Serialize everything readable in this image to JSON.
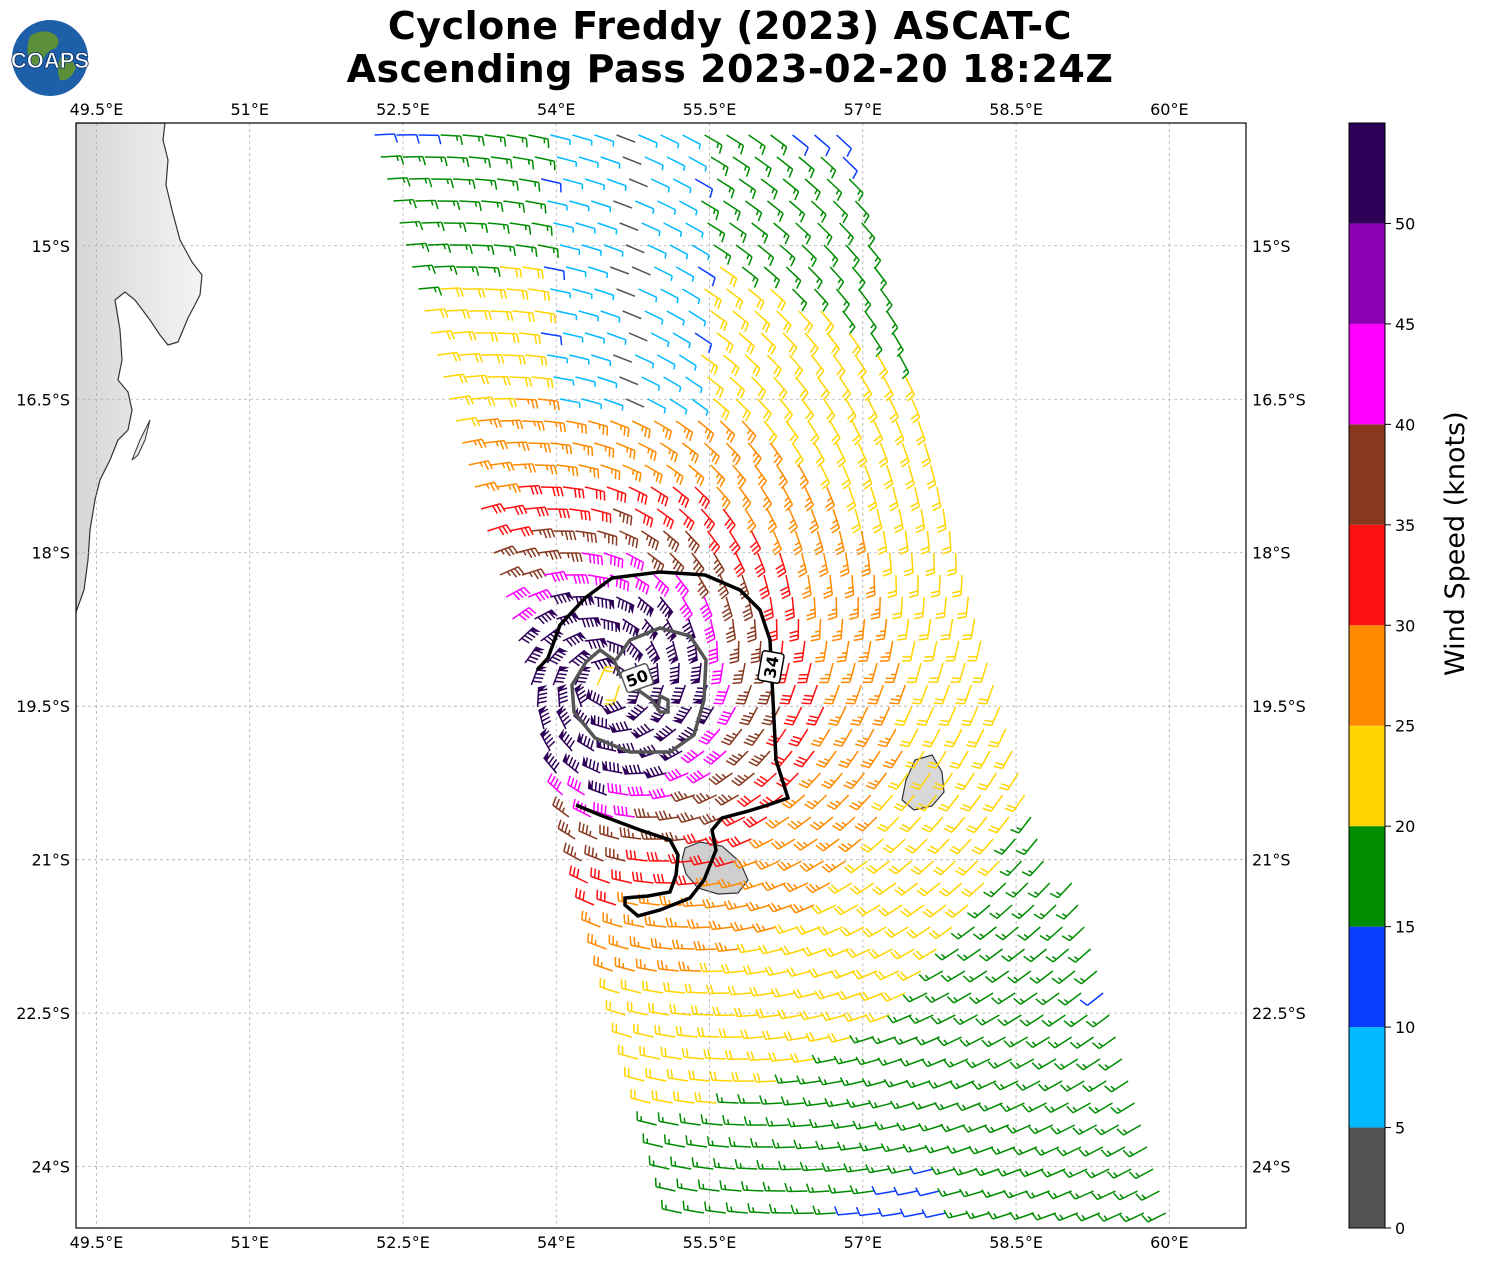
{
  "title": {
    "line1": "Cyclone Freddy (2023) ASCAT-C",
    "line2": "Ascending Pass 2023-02-20 18:24Z"
  },
  "logo": {
    "text": "COAPS",
    "icon": "globe-icon"
  },
  "map": {
    "lon_range": [
      49.3,
      60.75
    ],
    "lat_range": [
      -24.6,
      -13.8
    ],
    "lon_ticks": [
      "49.5°E",
      "51°E",
      "52.5°E",
      "54°E",
      "55.5°E",
      "57°E",
      "58.5°E",
      "60°E"
    ],
    "lat_ticks": [
      "15°S",
      "16.5°S",
      "18°S",
      "19.5°S",
      "21°S",
      "22.5°S",
      "24°S"
    ],
    "gridlines": true,
    "center": {
      "lon": 54.5,
      "lat": -19.3
    },
    "contour_labels": {
      "c34": "34",
      "c50": "50"
    },
    "islands": [
      "Madagascar",
      "Mauritius",
      "Réunion"
    ]
  },
  "colorbar": {
    "label": "Wind Speed (knots)",
    "ticks": [
      "0",
      "5",
      "10",
      "15",
      "20",
      "25",
      "30",
      "35",
      "40",
      "45",
      "50"
    ],
    "colors": [
      "#545454",
      "#00b9ff",
      "#0a3dff",
      "#008c00",
      "#ffd400",
      "#ff8a00",
      "#ff1010",
      "#87381f",
      "#ff00ff",
      "#8a00b2",
      "#2e0058"
    ],
    "range": [
      0,
      55
    ]
  }
}
